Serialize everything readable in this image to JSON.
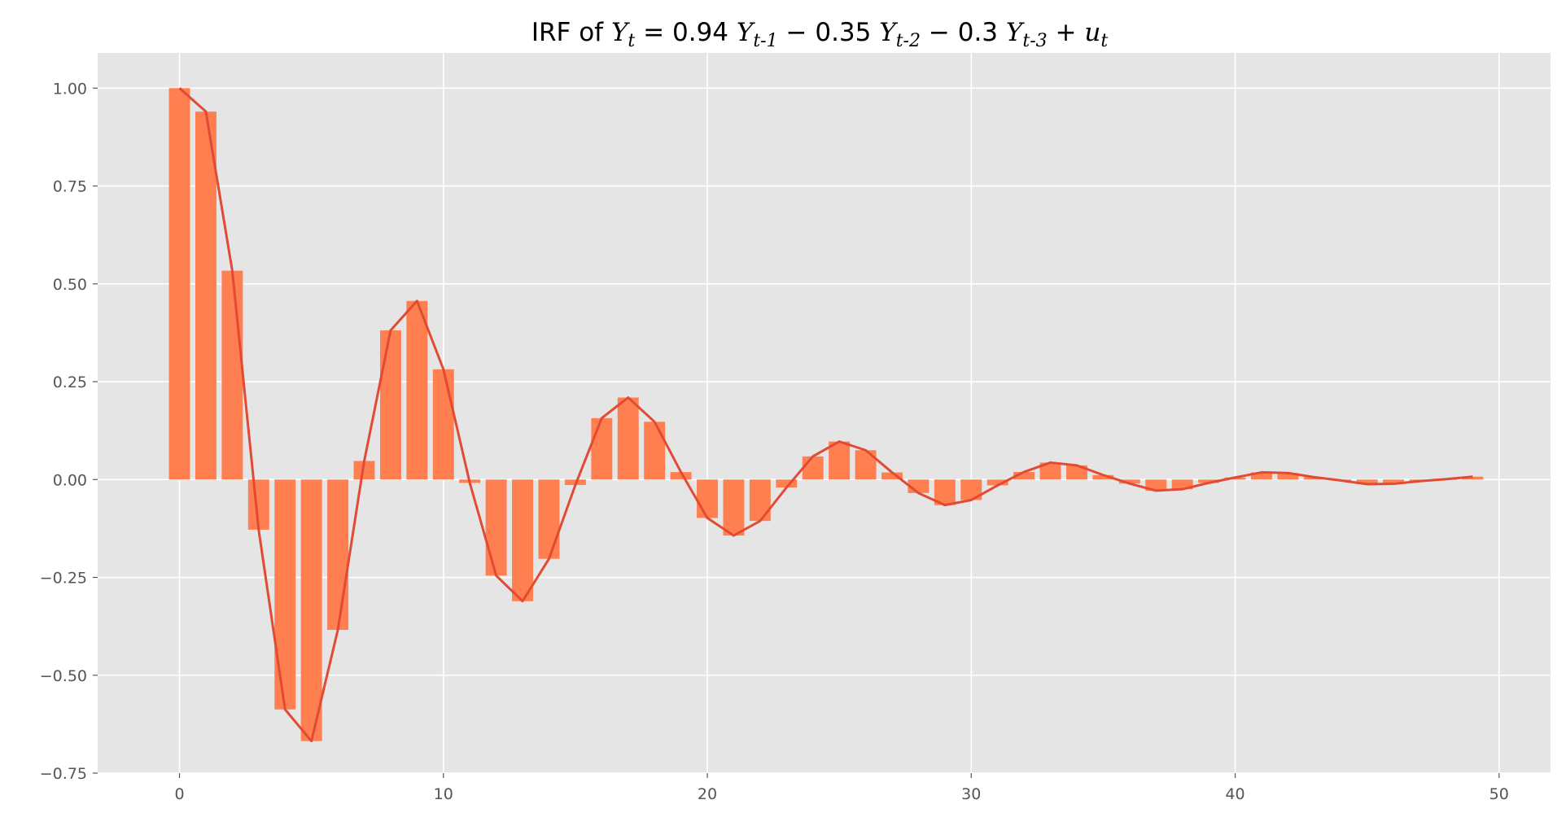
{
  "chart_data": {
    "type": "bar",
    "title": {
      "prefix": "IRF of ",
      "formula": "Y_t = 0.94 Y_{t-1} − 0.35 Y_{t-2} − 0.3 Y_{t-3} + u_t"
    },
    "xlabel": "",
    "ylabel": "",
    "xlim": [
      -3.1,
      51.95
    ],
    "ylim": [
      -0.75,
      1.09
    ],
    "x_ticks": [
      0,
      10,
      20,
      30,
      40,
      50
    ],
    "x_tick_labels": [
      "0",
      "10",
      "20",
      "30",
      "40",
      "50"
    ],
    "y_ticks": [
      1.0,
      0.75,
      0.5,
      0.25,
      0.0,
      -0.25,
      -0.5,
      -0.75
    ],
    "y_tick_labels": [
      "1.00",
      "0.75",
      "0.50",
      "0.25",
      "0.00",
      "−0.25",
      "−0.50",
      "−0.75"
    ],
    "grid": true,
    "legend": "none",
    "x": [
      0,
      1,
      2,
      3,
      4,
      5,
      6,
      7,
      8,
      9,
      10,
      11,
      12,
      13,
      14,
      15,
      16,
      17,
      18,
      19,
      20,
      21,
      22,
      23,
      24,
      25,
      26,
      27,
      28,
      29,
      30,
      31,
      32,
      33,
      34,
      35,
      36,
      37,
      38,
      39,
      40,
      41,
      42,
      43,
      44,
      45,
      46,
      47,
      48,
      49
    ],
    "values": [
      1.0,
      0.94,
      0.5336,
      -0.1281,
      -0.5873,
      -0.6681,
      -0.3841,
      0.0475,
      0.3811,
      0.4563,
      0.2817,
      -0.0085,
      -0.2455,
      -0.3108,
      -0.2025,
      -0.0139,
      0.1569,
      0.2095,
      0.1475,
      0.0191,
      -0.0982,
      -0.1431,
      -0.1058,
      -0.0204,
      0.0591,
      0.0971,
      0.0749,
      0.0181,
      -0.0345,
      -0.0652,
      -0.0524,
      -0.0148,
      0.0194,
      0.0433,
      0.0362,
      0.0115,
      -0.0103,
      -0.0284,
      -0.0247,
      -0.0085,
      0.0052,
      0.0184,
      0.0166,
      0.006,
      -0.0024,
      -0.0118,
      -0.011,
      -0.0042,
      0.001,
      0.0074
    ],
    "bar_color": "#ff7f50",
    "line_color": "#e24a33",
    "axes_background": "#e5e5e5",
    "grid_color": "#ffffff",
    "tick_color": "#555555"
  }
}
